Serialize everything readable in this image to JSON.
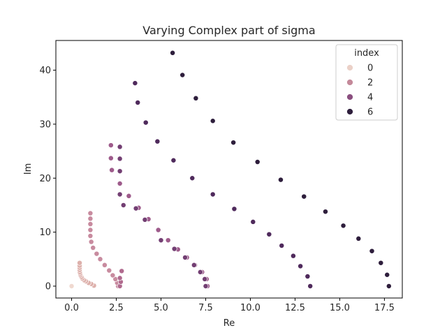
{
  "chart_data": {
    "type": "scatter",
    "title": "Varying Complex part of sigma",
    "xlabel": "Re",
    "ylabel": "Im",
    "xlim": [
      -0.88,
      18.5
    ],
    "ylim": [
      -2.2,
      45.5
    ],
    "xticks": [
      0.0,
      2.5,
      5.0,
      7.5,
      10.0,
      12.5,
      15.0,
      17.5
    ],
    "xtick_labels": [
      "0.0",
      "2.5",
      "5.0",
      "7.5",
      "10.0",
      "12.5",
      "15.0",
      "17.5"
    ],
    "yticks": [
      0,
      10,
      20,
      30,
      40
    ],
    "ytick_labels": [
      "0",
      "10",
      "20",
      "30",
      "40"
    ],
    "grid": false,
    "legend": {
      "title": "index",
      "placement": "top-right",
      "entries": [
        {
          "label": "0",
          "color": "#ebd1c8"
        },
        {
          "label": "2",
          "color": "#c4899a"
        },
        {
          "label": "4",
          "color": "#8a4f7f"
        },
        {
          "label": "6",
          "color": "#2e1e3c"
        }
      ]
    },
    "series": [
      {
        "index": 0,
        "color": "#f0d9d0",
        "points": [
          [
            0.0,
            0.0
          ]
        ]
      },
      {
        "index": 1,
        "color": "#ddb0ab",
        "points": [
          [
            1.25,
            0.1
          ],
          [
            1.1,
            0.4
          ],
          [
            0.95,
            0.6
          ],
          [
            0.8,
            0.9
          ],
          [
            0.7,
            1.1
          ],
          [
            0.6,
            1.4
          ],
          [
            0.55,
            1.7
          ],
          [
            0.5,
            2.0
          ],
          [
            0.48,
            2.3
          ],
          [
            0.46,
            2.6
          ],
          [
            0.45,
            3.0
          ],
          [
            0.45,
            3.4
          ],
          [
            0.45,
            3.8
          ],
          [
            0.45,
            4.3
          ]
        ]
      },
      {
        "index": 2,
        "color": "#c88b9f",
        "points": [
          [
            2.6,
            0.0
          ],
          [
            2.55,
            0.6
          ],
          [
            2.45,
            1.3
          ],
          [
            2.3,
            2.0
          ],
          [
            2.1,
            2.9
          ],
          [
            1.85,
            3.9
          ],
          [
            1.6,
            5.0
          ],
          [
            1.4,
            6.0
          ],
          [
            1.2,
            7.1
          ],
          [
            1.1,
            8.2
          ],
          [
            1.05,
            9.3
          ],
          [
            1.05,
            10.4
          ],
          [
            1.05,
            11.5
          ],
          [
            1.05,
            12.5
          ],
          [
            1.05,
            13.5
          ]
        ]
      },
      {
        "index": 3,
        "color": "#b06a8e",
        "points": [
          [
            2.7,
            0.0
          ],
          [
            2.75,
            0.8
          ],
          [
            2.7,
            1.5
          ],
          [
            2.8,
            2.8
          ]
        ]
      },
      {
        "index": 4,
        "color": "#9e5b8b",
        "points": [
          [
            7.6,
            0.0
          ],
          [
            7.55,
            1.3
          ],
          [
            7.3,
            2.6
          ],
          [
            6.9,
            3.9
          ],
          [
            6.45,
            5.3
          ],
          [
            5.95,
            6.8
          ],
          [
            5.4,
            8.5
          ],
          [
            4.85,
            10.4
          ],
          [
            4.3,
            12.4
          ],
          [
            3.75,
            14.5
          ],
          [
            3.2,
            16.7
          ],
          [
            2.7,
            19.0
          ],
          [
            2.25,
            21.5
          ],
          [
            2.2,
            23.7
          ],
          [
            2.2,
            26.1
          ]
        ]
      },
      {
        "index": 5,
        "color": "#733f73",
        "points": [
          [
            7.5,
            0.0
          ],
          [
            7.45,
            1.3
          ],
          [
            7.2,
            2.6
          ],
          [
            6.85,
            3.9
          ],
          [
            6.35,
            5.3
          ],
          [
            5.75,
            6.9
          ],
          [
            5.0,
            8.5
          ],
          [
            4.1,
            12.3
          ],
          [
            3.6,
            14.4
          ],
          [
            2.9,
            15.0
          ],
          [
            2.7,
            17.0
          ],
          [
            2.7,
            21.3
          ],
          [
            2.7,
            23.6
          ],
          [
            2.7,
            25.8
          ]
        ]
      },
      {
        "index": 6,
        "color": "#4f2a5c",
        "points": [
          [
            13.35,
            0.0
          ],
          [
            13.2,
            1.8
          ],
          [
            12.8,
            3.7
          ],
          [
            12.4,
            5.6
          ],
          [
            11.75,
            7.5
          ],
          [
            11.05,
            9.6
          ],
          [
            10.15,
            11.9
          ],
          [
            9.1,
            14.3
          ],
          [
            7.9,
            17.0
          ],
          [
            6.75,
            20.0
          ],
          [
            5.7,
            23.3
          ],
          [
            4.8,
            26.8
          ],
          [
            4.15,
            30.3
          ],
          [
            3.7,
            34.0
          ],
          [
            3.55,
            37.6
          ]
        ]
      },
      {
        "index": 7,
        "color": "#2e1e3c",
        "points": [
          [
            17.75,
            0.0
          ],
          [
            17.65,
            2.1
          ],
          [
            17.3,
            4.3
          ],
          [
            16.8,
            6.5
          ],
          [
            16.05,
            8.8
          ],
          [
            15.2,
            11.2
          ],
          [
            14.2,
            13.8
          ],
          [
            13.0,
            16.6
          ],
          [
            11.7,
            19.7
          ],
          [
            10.4,
            23.0
          ],
          [
            9.05,
            26.6
          ],
          [
            7.9,
            30.6
          ],
          [
            6.95,
            34.8
          ],
          [
            6.2,
            39.1
          ],
          [
            5.65,
            43.2
          ]
        ]
      }
    ]
  }
}
